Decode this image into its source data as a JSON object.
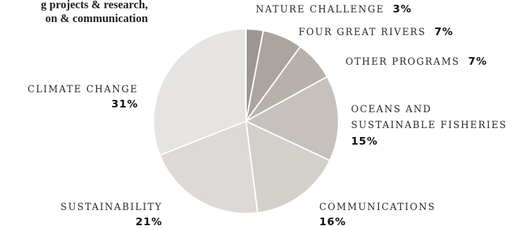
{
  "intro": {
    "line1": "g projects & research,",
    "line2": "on & communication"
  },
  "chart_data": {
    "type": "pie",
    "slices": [
      {
        "label": "NATURE CHALLENGE",
        "value": 3,
        "display": "3%",
        "color": "#9e9692"
      },
      {
        "label": "FOUR GREAT RIVERS",
        "value": 7,
        "display": "7%",
        "color": "#aba49f"
      },
      {
        "label": "OTHER PROGRAMS",
        "value": 7,
        "display": "7%",
        "color": "#b7b1ac"
      },
      {
        "label": "OCEANS AND SUSTAINABLE FISHERIES",
        "label_lines": [
          "OCEANS AND",
          "SUSTAINABLE FISHERIES"
        ],
        "value": 15,
        "display": "15%",
        "color": "#c6c1bd"
      },
      {
        "label": "COMMUNICATIONS",
        "value": 16,
        "display": "16%",
        "color": "#d3cfcb"
      },
      {
        "label": "SUSTAINABILITY",
        "value": 21,
        "display": "21%",
        "color": "#dcd9d6"
      },
      {
        "label": "CLIMATE CHANGE",
        "value": 31,
        "display": "31%",
        "color": "#e6e4e2"
      }
    ]
  }
}
